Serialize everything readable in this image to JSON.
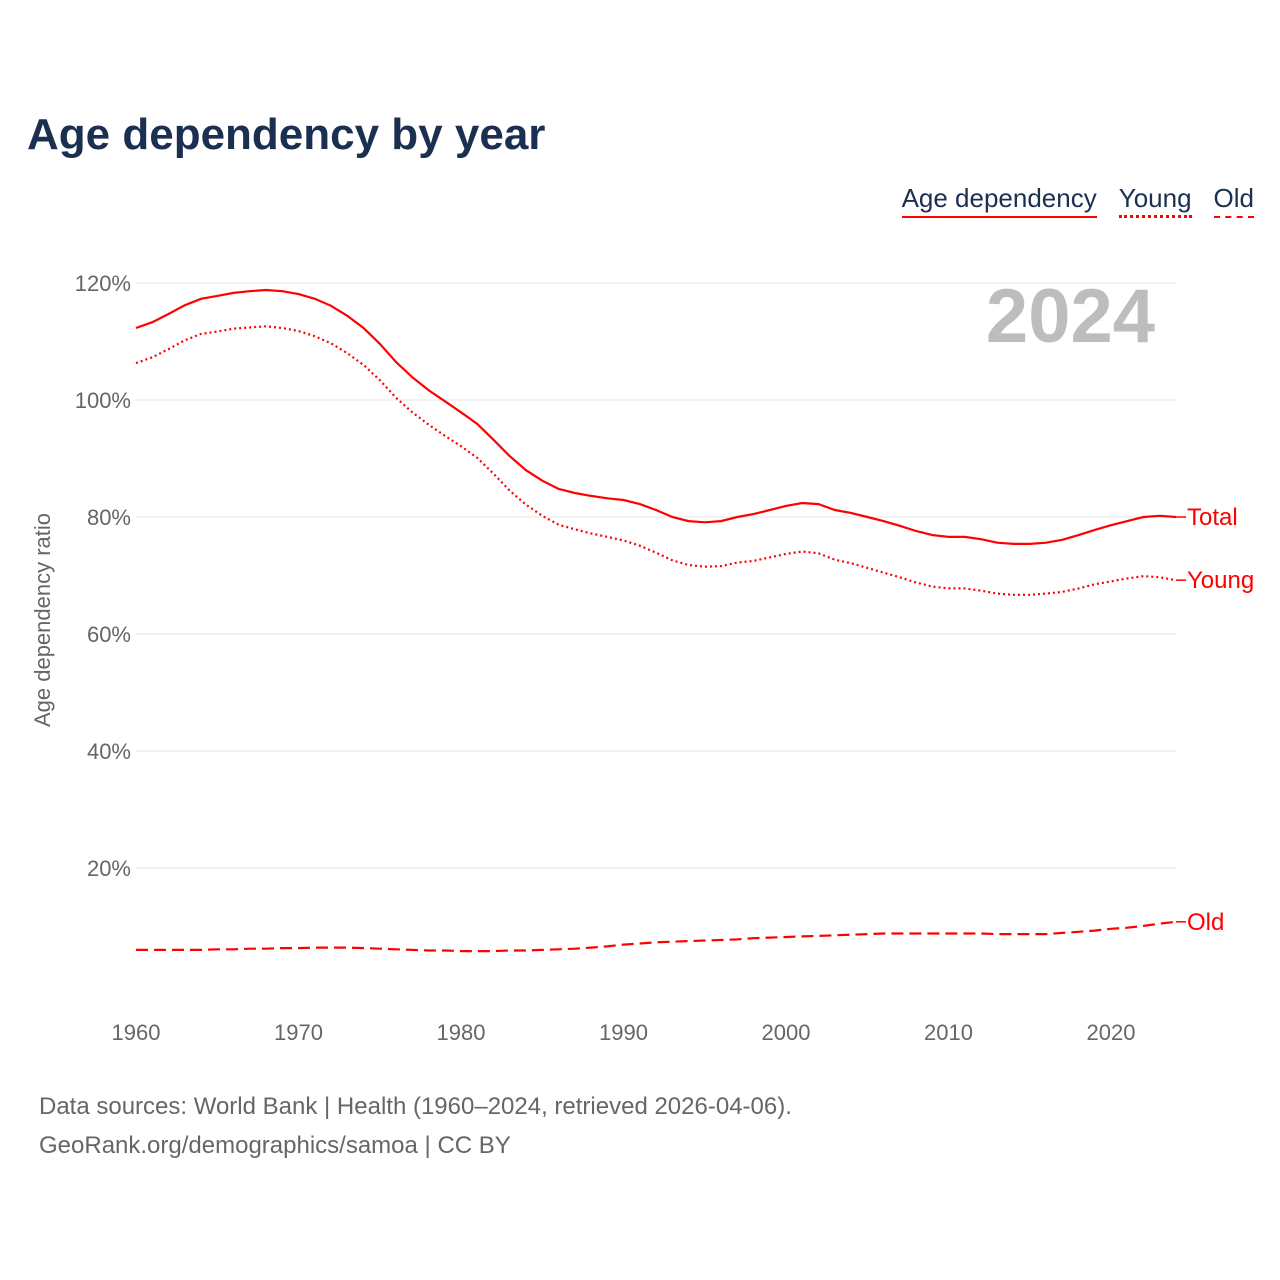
{
  "title": "Age dependency by year",
  "legend": [
    "Age dependency",
    "Young",
    "Old"
  ],
  "year_label": "2024",
  "footer": {
    "line1": "Data sources: World Bank | Health (1960–2024, retrieved 2026-04-06).",
    "line2": "GeoRank.org/demographics/samoa | CC BY"
  },
  "colors": {
    "series": "#ff0000",
    "title": "#1b3050"
  },
  "chart_data": {
    "type": "line",
    "title": "Age dependency by year",
    "xlabel": "",
    "ylabel": "Age dependency ratio",
    "xlim": [
      1960,
      2024
    ],
    "ylim": [
      0,
      125
    ],
    "x_ticks": [
      1960,
      1970,
      1980,
      1990,
      2000,
      2010,
      2020
    ],
    "y_ticks": [
      20,
      40,
      60,
      80,
      100,
      120
    ],
    "y_tick_labels": [
      "20%",
      "40%",
      "60%",
      "80%",
      "100%",
      "120%"
    ],
    "grid": true,
    "legend_position": "top-right",
    "x_start": 1960,
    "series": [
      {
        "name": "Total",
        "legend": "Age dependency",
        "style": "solid",
        "values": [
          112.3,
          113.3,
          114.7,
          116.2,
          117.3,
          117.8,
          118.3,
          118.6,
          118.8,
          118.6,
          118.1,
          117.3,
          116.1,
          114.4,
          112.3,
          109.6,
          106.5,
          103.9,
          101.7,
          99.8,
          97.9,
          95.9,
          93.2,
          90.4,
          88.0,
          86.2,
          84.8,
          84.1,
          83.6,
          83.2,
          82.9,
          82.2,
          81.2,
          80.0,
          79.3,
          79.1,
          79.3,
          80.0,
          80.5,
          81.2,
          81.9,
          82.4,
          82.2,
          81.2,
          80.7,
          80.0,
          79.3,
          78.5,
          77.6,
          76.9,
          76.6,
          76.6,
          76.2,
          75.6,
          75.4,
          75.4,
          75.6,
          76.1,
          76.9,
          77.8,
          78.6,
          79.3,
          80.0,
          80.2,
          80.0
        ]
      },
      {
        "name": "Young",
        "legend": "Young",
        "style": "dotted",
        "values": [
          106.3,
          107.3,
          108.7,
          110.2,
          111.3,
          111.7,
          112.2,
          112.4,
          112.6,
          112.3,
          111.8,
          110.9,
          109.7,
          108.0,
          106.0,
          103.4,
          100.4,
          97.9,
          95.8,
          93.9,
          92.1,
          90.1,
          87.4,
          84.5,
          82.1,
          80.2,
          78.7,
          77.9,
          77.2,
          76.6,
          76.0,
          75.1,
          73.9,
          72.6,
          71.8,
          71.5,
          71.6,
          72.2,
          72.5,
          73.1,
          73.7,
          74.1,
          73.8,
          72.7,
          72.1,
          71.3,
          70.5,
          69.7,
          68.8,
          68.1,
          67.8,
          67.8,
          67.4,
          66.9,
          66.7,
          66.7,
          66.9,
          67.2,
          67.8,
          68.5,
          69.0,
          69.5,
          69.9,
          69.7,
          69.2
        ]
      },
      {
        "name": "Old",
        "legend": "Old",
        "style": "dashed",
        "values": [
          6.0,
          6.0,
          6.0,
          6.0,
          6.0,
          6.1,
          6.1,
          6.2,
          6.2,
          6.3,
          6.3,
          6.4,
          6.4,
          6.4,
          6.3,
          6.2,
          6.1,
          6.0,
          5.9,
          5.9,
          5.8,
          5.8,
          5.8,
          5.9,
          5.9,
          6.0,
          6.1,
          6.2,
          6.4,
          6.6,
          6.9,
          7.1,
          7.3,
          7.4,
          7.5,
          7.6,
          7.7,
          7.8,
          8.0,
          8.1,
          8.2,
          8.3,
          8.4,
          8.5,
          8.6,
          8.7,
          8.8,
          8.8,
          8.8,
          8.8,
          8.8,
          8.8,
          8.8,
          8.7,
          8.7,
          8.7,
          8.7,
          8.9,
          9.1,
          9.3,
          9.6,
          9.8,
          10.1,
          10.5,
          10.8
        ]
      }
    ]
  }
}
